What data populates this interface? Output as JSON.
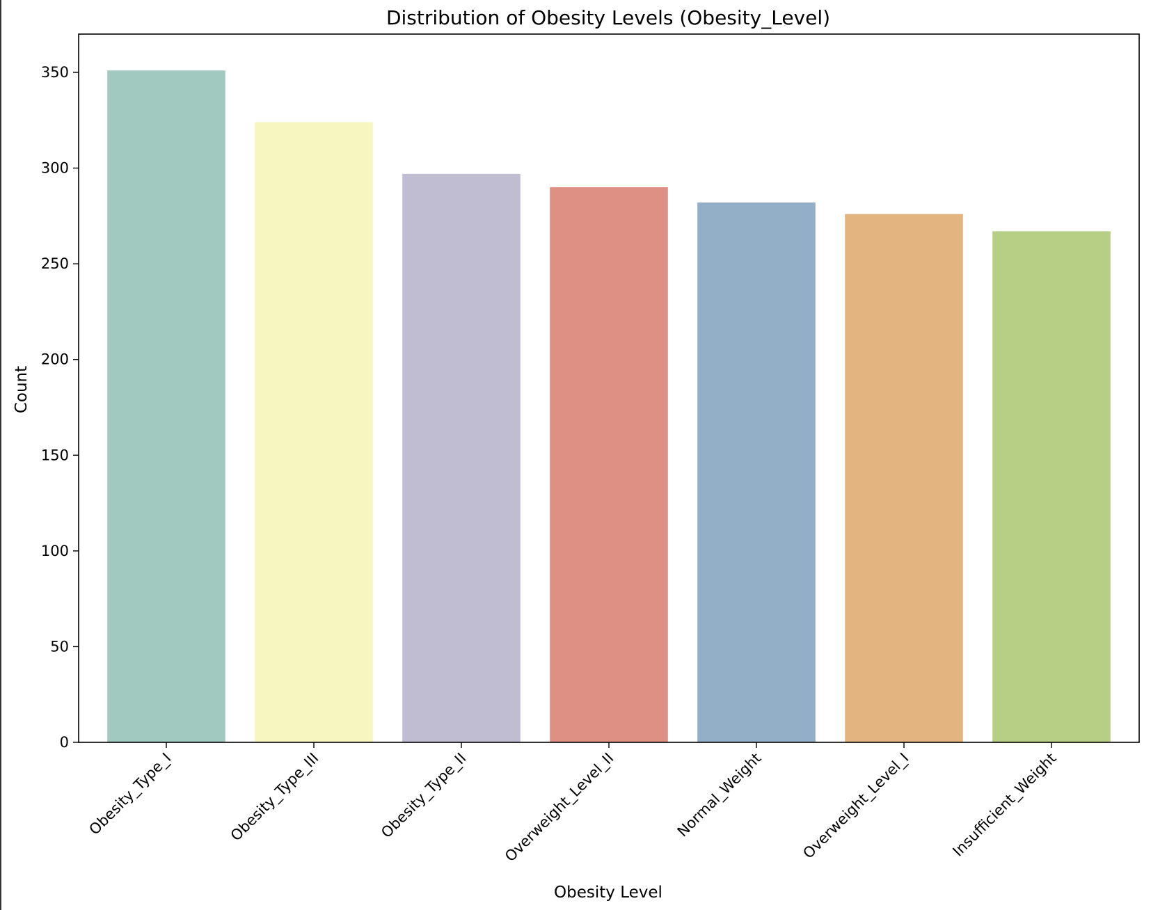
{
  "chart_data": {
    "type": "bar",
    "title": "Distribution of Obesity Levels (Obesity_Level)",
    "xlabel": "Obesity Level",
    "ylabel": "Count",
    "categories": [
      "Obesity_Type_I",
      "Obesity_Type_III",
      "Obesity_Type_II",
      "Overweight_Level_II",
      "Normal_Weight",
      "Overweight_Level_I",
      "Insufficient_Weight"
    ],
    "values": [
      351,
      324,
      297,
      290,
      282,
      276,
      267
    ],
    "colors": [
      "#a1c9c0",
      "#f7f6c1",
      "#c0bdd3",
      "#dd9083",
      "#93afc7",
      "#e3b47f",
      "#b7cf84"
    ],
    "ylim": [
      0,
      370
    ],
    "yticks": [
      0,
      50,
      100,
      150,
      200,
      250,
      300,
      350
    ],
    "grid": false,
    "legend": false
  }
}
